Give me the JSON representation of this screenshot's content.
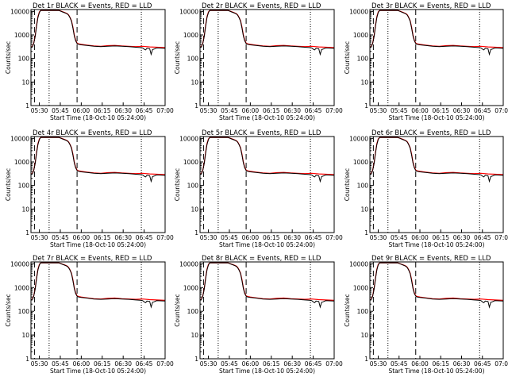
{
  "figure": {
    "xlabel": "Start Time (18-Oct-10 05:24:00)",
    "ylabel": "Counts/sec",
    "panel_titles": [
      "Det 1r BLACK = Events, RED = LLD",
      "Det 2r BLACK = Events, RED = LLD",
      "Det 3r BLACK = Events, RED = LLD",
      "Det 4r BLACK = Events, RED = LLD",
      "Det 5r BLACK = Events, RED = LLD",
      "Det 6r BLACK = Events, RED = LLD",
      "Det 7r BLACK = Events, RED = LLD",
      "Det 8r BLACK = Events, RED = LLD",
      "Det 9r BLACK = Events, RED = LLD"
    ],
    "xtick_labels": [
      "05:30",
      "05:45",
      "06:00",
      "06:15",
      "06:30",
      "06:45",
      "07:00"
    ],
    "ytick_labels": [
      "1",
      "10",
      "100",
      "1000",
      "10000"
    ],
    "colors": {
      "events": "#000000",
      "lld": "#ff0000",
      "axes": "#000000"
    }
  },
  "chart_data": {
    "type": "line",
    "panels": 9,
    "x_unit": "minutes since 05:24:00",
    "xlim": [
      0,
      96
    ],
    "x_ticks": [
      6,
      21,
      36,
      51,
      66,
      81,
      96
    ],
    "y_scale": "log",
    "ylim": [
      1,
      12000
    ],
    "y_ticks": [
      1,
      10,
      100,
      1000,
      10000
    ],
    "grid": false,
    "vlines_dashed": [
      2.5,
      33
    ],
    "vlines_dotted": [
      13,
      79
    ],
    "series": [
      {
        "name": "LLD",
        "color": "#ff0000",
        "x": [
          0,
          1,
          2,
          3,
          4,
          5,
          6,
          7,
          8,
          9,
          10,
          11,
          12,
          14,
          16,
          18,
          20,
          22,
          24,
          26,
          27,
          28,
          29,
          30,
          31,
          32,
          33,
          34,
          36,
          40,
          45,
          50,
          55,
          60,
          65,
          70,
          75,
          80,
          85,
          90,
          96
        ],
        "y": [
          300,
          330,
          450,
          900,
          2500,
          6000,
          9500,
          11000,
          11000,
          11000,
          11000,
          11000,
          11000,
          11000,
          11000,
          11000,
          11000,
          10000,
          9000,
          8000,
          7000,
          5500,
          4000,
          2200,
          1000,
          600,
          450,
          420,
          400,
          370,
          340,
          330,
          350,
          360,
          340,
          330,
          320,
          330,
          310,
          300,
          290
        ]
      },
      {
        "name": "Events",
        "color": "#000000",
        "x": [
          0,
          1,
          2,
          3,
          4,
          5,
          6,
          7,
          8,
          9,
          10,
          11,
          12,
          14,
          16,
          18,
          20,
          22,
          24,
          26,
          27,
          28,
          29,
          30,
          31,
          32,
          33,
          34,
          36,
          40,
          45,
          50,
          55,
          60,
          65,
          70,
          75,
          79,
          80,
          81,
          82,
          83,
          85,
          86,
          87,
          88,
          90,
          96
        ],
        "y": [
          290,
          320,
          430,
          850,
          2300,
          5500,
          9000,
          11000,
          11000,
          11000,
          11000,
          11000,
          11000,
          11000,
          11000,
          11000,
          11000,
          9800,
          8800,
          7800,
          6800,
          5300,
          3800,
          2000,
          900,
          560,
          430,
          400,
          380,
          360,
          330,
          320,
          330,
          340,
          330,
          320,
          300,
          290,
          280,
          250,
          230,
          270,
          260,
          150,
          240,
          250,
          280,
          270
        ]
      }
    ]
  }
}
